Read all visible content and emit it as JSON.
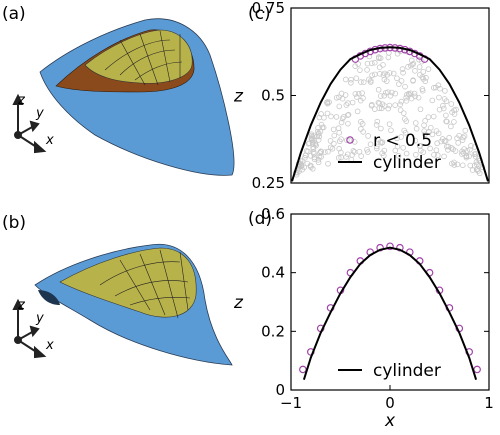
{
  "panels": {
    "a": {
      "label": "(a)"
    },
    "b": {
      "label": "(b)"
    },
    "c": {
      "label": "(c)"
    },
    "d": {
      "label": "(d)"
    }
  },
  "triad": {
    "x": "x",
    "y": "y",
    "z": "z"
  },
  "colors": {
    "surface_blue": "#5b9bd5",
    "surface_yellow": "#b8b24a",
    "surface_brown": "#8a4a1c",
    "data_purple": "#a044a8",
    "data_gray": "#c8c8c8",
    "fit_line": "#000000"
  },
  "chart_data": [
    {
      "id": "c",
      "type": "scatter",
      "xlabel": "",
      "ylabel": "z",
      "xlim": [
        -1,
        1
      ],
      "ylim": [
        0.25,
        0.75
      ],
      "yticks": [
        0.25,
        0.5,
        0.75
      ],
      "ytick_labels": [
        "0.25",
        "0.5",
        "0.75"
      ],
      "legend": {
        "position": "bottom-right",
        "entries": [
          "r < 0.5",
          "cylinder"
        ]
      },
      "series": [
        {
          "name": "r < 0.5",
          "kind": "points",
          "color": "#a044a8",
          "x": [
            -0.35,
            -0.3,
            -0.25,
            -0.2,
            -0.15,
            -0.1,
            -0.05,
            0,
            0.05,
            0.1,
            0.15,
            0.2,
            0.25,
            0.3,
            0.35
          ],
          "y": [
            0.604,
            0.613,
            0.62,
            0.626,
            0.631,
            0.634,
            0.636,
            0.637,
            0.636,
            0.634,
            0.631,
            0.626,
            0.62,
            0.613,
            0.604
          ]
        },
        {
          "name": "cylinder",
          "kind": "line",
          "color": "#000000",
          "x": [
            -0.99,
            -0.9,
            -0.8,
            -0.7,
            -0.6,
            -0.5,
            -0.4,
            -0.3,
            -0.2,
            -0.1,
            0,
            0.1,
            0.2,
            0.3,
            0.4,
            0.5,
            0.6,
            0.7,
            0.8,
            0.9,
            0.99
          ],
          "y": [
            0.255,
            0.337,
            0.415,
            0.48,
            0.533,
            0.574,
            0.604,
            0.618,
            0.63,
            0.636,
            0.638,
            0.636,
            0.63,
            0.618,
            0.604,
            0.574,
            0.533,
            0.48,
            0.415,
            0.337,
            0.255
          ]
        }
      ]
    },
    {
      "id": "d",
      "type": "scatter",
      "xlabel": "x",
      "ylabel": "z",
      "xlim": [
        -1,
        1
      ],
      "ylim": [
        0,
        0.6
      ],
      "xticks": [
        -1,
        0,
        1
      ],
      "xtick_labels": [
        "−1",
        "0",
        "1"
      ],
      "yticks": [
        0,
        0.2,
        0.4,
        0.6
      ],
      "ytick_labels": [
        "0",
        "0.2",
        "0.4",
        "0.6"
      ],
      "legend": {
        "position": "bottom-right",
        "entries": [
          "cylinder"
        ]
      },
      "series": [
        {
          "name": "",
          "kind": "points",
          "color": "#a044a8",
          "x": [
            -0.88,
            -0.8,
            -0.7,
            -0.6,
            -0.5,
            -0.4,
            -0.3,
            -0.2,
            -0.1,
            0,
            0.1,
            0.2,
            0.3,
            0.4,
            0.5,
            0.6,
            0.7,
            0.8,
            0.88
          ],
          "y": [
            0.07,
            0.13,
            0.21,
            0.28,
            0.34,
            0.4,
            0.44,
            0.47,
            0.485,
            0.49,
            0.485,
            0.47,
            0.44,
            0.4,
            0.34,
            0.28,
            0.21,
            0.13,
            0.07
          ]
        },
        {
          "name": "cylinder",
          "kind": "line",
          "color": "#000000",
          "x": [
            -0.87,
            -0.8,
            -0.7,
            -0.6,
            -0.5,
            -0.4,
            -0.3,
            -0.2,
            -0.1,
            0,
            0.1,
            0.2,
            0.3,
            0.4,
            0.5,
            0.6,
            0.7,
            0.8,
            0.87
          ],
          "y": [
            0.035,
            0.11,
            0.195,
            0.265,
            0.33,
            0.385,
            0.43,
            0.46,
            0.478,
            0.485,
            0.478,
            0.46,
            0.43,
            0.385,
            0.33,
            0.265,
            0.195,
            0.11,
            0.035
          ]
        }
      ]
    }
  ]
}
